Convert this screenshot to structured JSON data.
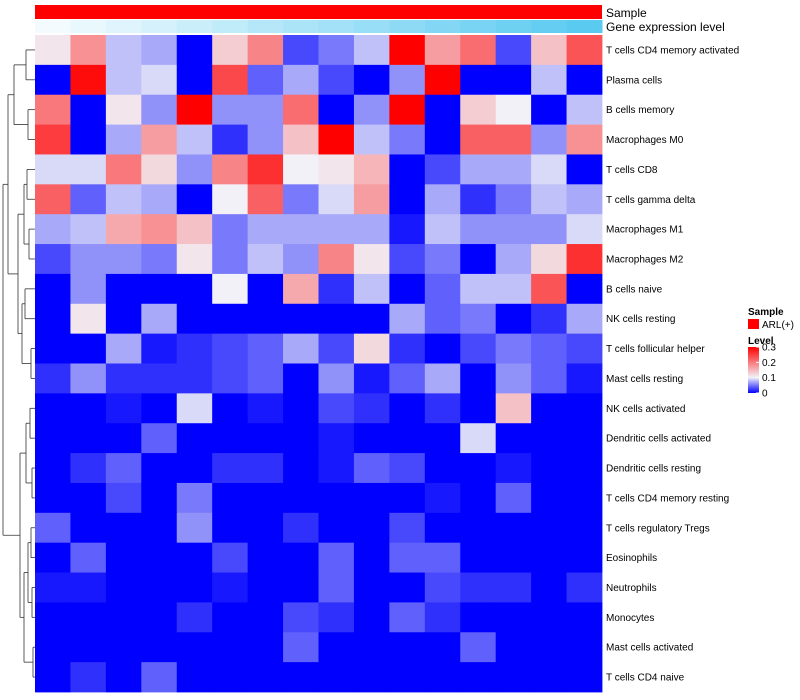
{
  "chart_data": {
    "type": "heatmap",
    "annotations": [
      {
        "name": "Sample",
        "color": "#ff0000"
      },
      {
        "name": "Gene expression level",
        "gradient": [
          "#f3fbfe",
          "#5bcaf0"
        ]
      }
    ],
    "rows": [
      "T cells CD4 memory activated",
      "Plasma cells",
      "B cells memory",
      "Macrophages M0",
      "T cells CD8",
      "T cells gamma delta",
      "Macrophages M1",
      "Macrophages M2",
      "B cells naive",
      "NK cells resting",
      "T cells follicular helper",
      "Mast cells resting",
      "NK cells activated",
      "Dendritic cells activated",
      "Dendritic cells resting",
      "T cells CD4 memory resting",
      "T cells regulatory  Tregs",
      "Eosinophils",
      "Neutrophils",
      "Monocytes",
      "Mast cells activated",
      "T cells CD4 naive"
    ],
    "column_count": 16,
    "values": [
      [
        0.11,
        0.18,
        0.08,
        0.07,
        0.0,
        0.13,
        0.19,
        0.03,
        0.05,
        0.08,
        0.3,
        0.17,
        0.21,
        0.03,
        0.14,
        0.23
      ],
      [
        0.0,
        0.29,
        0.08,
        0.09,
        0.0,
        0.24,
        0.04,
        0.07,
        0.03,
        0.0,
        0.06,
        0.3,
        0.0,
        0.0,
        0.08,
        0.0
      ],
      [
        0.2,
        0.0,
        0.11,
        0.06,
        0.3,
        0.06,
        0.06,
        0.21,
        0.0,
        0.06,
        0.3,
        0.0,
        0.13,
        0.1,
        0.0,
        0.08
      ],
      [
        0.25,
        0.0,
        0.07,
        0.17,
        0.08,
        0.02,
        0.06,
        0.14,
        0.3,
        0.08,
        0.05,
        0.0,
        0.22,
        0.22,
        0.06,
        0.18
      ],
      [
        0.09,
        0.09,
        0.2,
        0.12,
        0.06,
        0.19,
        0.26,
        0.1,
        0.11,
        0.15,
        0.0,
        0.03,
        0.07,
        0.07,
        0.09,
        0.0
      ],
      [
        0.22,
        0.04,
        0.08,
        0.07,
        0.0,
        0.1,
        0.22,
        0.05,
        0.09,
        0.17,
        0.0,
        0.07,
        0.02,
        0.05,
        0.08,
        0.07
      ],
      [
        0.07,
        0.08,
        0.16,
        0.18,
        0.14,
        0.05,
        0.07,
        0.07,
        0.07,
        0.07,
        0.01,
        0.08,
        0.06,
        0.06,
        0.06,
        0.09
      ],
      [
        0.03,
        0.06,
        0.06,
        0.05,
        0.11,
        0.05,
        0.08,
        0.06,
        0.19,
        0.11,
        0.03,
        0.05,
        0.0,
        0.07,
        0.12,
        0.26
      ],
      [
        0.0,
        0.06,
        0.0,
        0.0,
        0.0,
        0.1,
        0.0,
        0.16,
        0.02,
        0.08,
        0.0,
        0.04,
        0.08,
        0.08,
        0.23,
        0.0
      ],
      [
        0.0,
        0.11,
        0.0,
        0.07,
        0.0,
        0.0,
        0.0,
        0.0,
        0.0,
        0.0,
        0.07,
        0.04,
        0.05,
        0.0,
        0.02,
        0.07
      ],
      [
        0.0,
        0.0,
        0.07,
        0.01,
        0.02,
        0.03,
        0.04,
        0.07,
        0.03,
        0.12,
        0.02,
        0.0,
        0.03,
        0.05,
        0.04,
        0.03
      ],
      [
        0.02,
        0.06,
        0.02,
        0.02,
        0.02,
        0.03,
        0.04,
        0.0,
        0.06,
        0.01,
        0.04,
        0.07,
        0.0,
        0.06,
        0.04,
        0.01
      ],
      [
        0.0,
        0.0,
        0.01,
        0.0,
        0.09,
        0.0,
        0.01,
        0.0,
        0.03,
        0.02,
        0.0,
        0.02,
        0.0,
        0.14,
        0.0,
        0.0
      ],
      [
        0.0,
        0.0,
        0.0,
        0.04,
        0.0,
        0.0,
        0.0,
        0.0,
        0.01,
        0.0,
        0.0,
        0.0,
        0.09,
        0.0,
        0.0,
        0.0
      ],
      [
        0.0,
        0.02,
        0.04,
        0.0,
        0.0,
        0.02,
        0.02,
        0.0,
        0.01,
        0.04,
        0.03,
        0.0,
        0.0,
        0.01,
        0.0,
        0.0
      ],
      [
        0.0,
        0.0,
        0.03,
        0.0,
        0.05,
        0.0,
        0.0,
        0.0,
        0.0,
        0.0,
        0.0,
        0.01,
        0.0,
        0.04,
        0.0,
        0.0
      ],
      [
        0.04,
        0.0,
        0.0,
        0.0,
        0.06,
        0.0,
        0.0,
        0.02,
        0.0,
        0.0,
        0.03,
        0.0,
        0.0,
        0.0,
        0.0,
        0.0
      ],
      [
        0.0,
        0.04,
        0.0,
        0.0,
        0.0,
        0.03,
        0.0,
        0.0,
        0.04,
        0.0,
        0.04,
        0.04,
        0.0,
        0.0,
        0.0,
        0.0
      ],
      [
        0.01,
        0.01,
        0.0,
        0.0,
        0.0,
        0.01,
        0.0,
        0.0,
        0.04,
        0.0,
        0.0,
        0.03,
        0.02,
        0.02,
        0.0,
        0.02
      ],
      [
        0.0,
        0.0,
        0.0,
        0.0,
        0.02,
        0.0,
        0.0,
        0.03,
        0.02,
        0.0,
        0.04,
        0.02,
        0.0,
        0.0,
        0.0,
        0.0
      ],
      [
        0.0,
        0.0,
        0.0,
        0.0,
        0.0,
        0.0,
        0.0,
        0.04,
        0.0,
        0.0,
        0.0,
        0.0,
        0.04,
        0.0,
        0.0,
        0.0
      ],
      [
        0.0,
        0.02,
        0.0,
        0.04,
        0.0,
        0.0,
        0.0,
        0.0,
        0.0,
        0.0,
        0.0,
        0.0,
        0.0,
        0.0,
        0.0,
        0.0
      ]
    ],
    "color_scale": {
      "min": 0,
      "mid": 0.1,
      "max": 0.3,
      "low": "#0000ff",
      "midColor": "#f1f1f7",
      "high": "#ff0000"
    },
    "legend": {
      "sample_title": "Sample",
      "sample_entry": "ARL(+)",
      "level_title": "Level",
      "level_ticks": [
        0.3,
        0.2,
        0.1,
        0
      ]
    },
    "dendrogram": "rows",
    "legend_position": "right"
  }
}
